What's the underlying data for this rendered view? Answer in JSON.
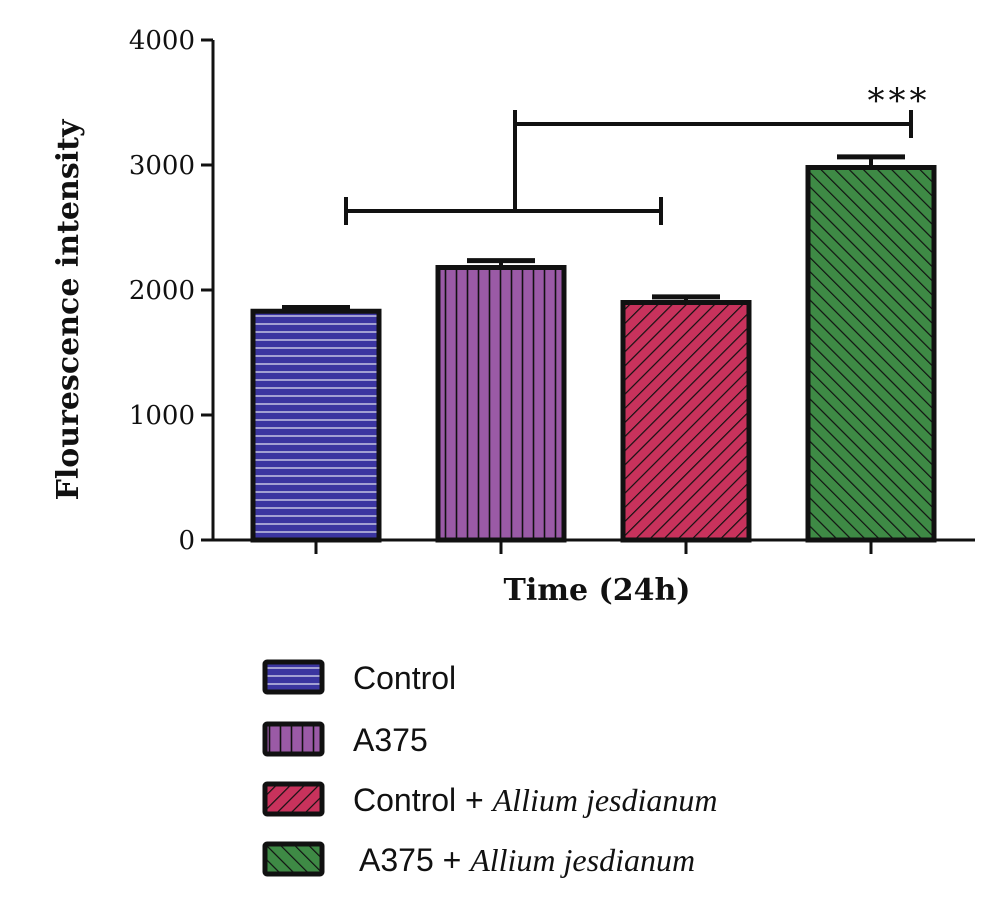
{
  "chart_data": {
    "type": "bar",
    "title": "",
    "xlabel": "Time (24h)",
    "ylabel": "Flourescence intensity",
    "ylim": [
      0,
      4000
    ],
    "yticks": [
      0,
      1000,
      2000,
      3000,
      4000
    ],
    "categories": [
      "Control",
      "A375",
      "Control + Allium jesdianum",
      "A375 + Allium jesdianum"
    ],
    "values": [
      1830,
      2180,
      1900,
      2980
    ],
    "errors": [
      30,
      55,
      45,
      85
    ],
    "significance": "***",
    "legend_position": "bottom",
    "legend": [
      {
        "plain": "Control",
        "italic": "",
        "color": "#3b35a0",
        "pattern": "horizontal"
      },
      {
        "plain": "A375",
        "italic": "",
        "color": "#9a5aa6",
        "pattern": "vertical"
      },
      {
        "plain": "Control + ",
        "italic": "Allium jesdianum",
        "color": "#c8325c",
        "pattern": "diagonal"
      },
      {
        "plain": "A375 + ",
        "italic": "Allium jesdianum",
        "color": "#3e8a45",
        "pattern": "diagonal-back"
      }
    ]
  }
}
